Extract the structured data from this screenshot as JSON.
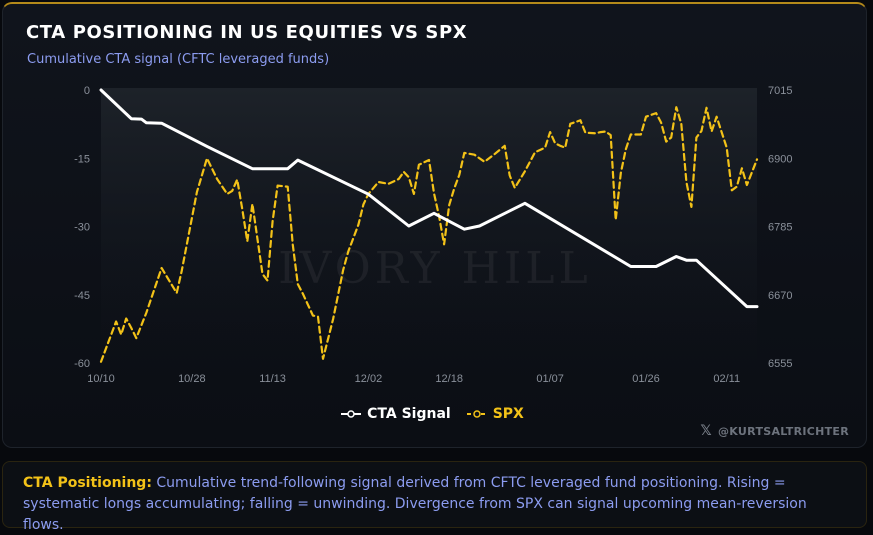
{
  "title": "CTA POSITIONING IN US EQUITIES VS SPX",
  "subtitle": "Cumulative CTA signal (CFTC leveraged funds)",
  "watermark": "IVORY HILL",
  "credit": "@KURTSALTRICHTER",
  "note": {
    "label": "CTA Positioning:",
    "text": " Cumulative trend-following signal derived from CFTC leveraged fund positioning. Rising = systematic longs accumulating; falling = unwinding. Divergence from SPX can signal upcoming mean-reversion flows."
  },
  "colors": {
    "cta": "#ffffff",
    "spx": "#f3c218",
    "accent": "#b48a1a",
    "subtitle": "#8c9cf0"
  },
  "chart_data": {
    "type": "line",
    "x_start": "10/10",
    "x_end": "02/17",
    "x_ticks": [
      {
        "label": "10/10",
        "x": "10/10"
      },
      {
        "label": "10/28",
        "x": "10/28"
      },
      {
        "label": "11/13",
        "x": "11/13"
      },
      {
        "label": "12/02",
        "x": "12/02"
      },
      {
        "label": "12/18",
        "x": "12/18"
      },
      {
        "label": "01/07",
        "x": "01/07"
      },
      {
        "label": "01/26",
        "x": "01/26"
      },
      {
        "label": "02/11",
        "x": "02/11"
      }
    ],
    "y_left": {
      "ticks": [
        "0",
        "-15",
        "-30",
        "-45",
        "-60"
      ],
      "ylim": [
        -60,
        0
      ]
    },
    "y_right": {
      "ticks": [
        "7015",
        "6900",
        "6785",
        "6670",
        "6555"
      ],
      "ylim": [
        6555,
        7015
      ]
    },
    "series": [
      {
        "name": "CTA Signal",
        "axis": "left",
        "style": "solid",
        "points": [
          [
            "10/10",
            0
          ],
          [
            "10/16",
            -6.3
          ],
          [
            "10/18",
            -6.4
          ],
          [
            "10/19",
            -7.2
          ],
          [
            "10/22",
            -7.3
          ],
          [
            "10/31",
            -12.4
          ],
          [
            "11/09",
            -17.3
          ],
          [
            "11/16",
            -17.3
          ],
          [
            "11/18",
            -15.4
          ],
          [
            "12/02",
            -22.9
          ],
          [
            "12/10",
            -29.9
          ],
          [
            "12/15",
            -27.1
          ],
          [
            "12/21",
            -30.6
          ],
          [
            "12/24",
            -29.9
          ],
          [
            "01/02",
            -24.9
          ],
          [
            "01/23",
            -38.8
          ],
          [
            "01/28",
            -38.8
          ],
          [
            "02/01",
            -36.6
          ],
          [
            "02/03",
            -37.4
          ],
          [
            "02/05",
            -37.4
          ],
          [
            "02/15",
            -47.6
          ],
          [
            "02/17",
            -47.6
          ]
        ]
      },
      {
        "name": "SPX",
        "axis": "right",
        "style": "dashed",
        "points": [
          [
            "10/10",
            6557
          ],
          [
            "10/13",
            6625
          ],
          [
            "10/14",
            6603
          ],
          [
            "10/15",
            6630
          ],
          [
            "10/16",
            6614
          ],
          [
            "10/17",
            6597
          ],
          [
            "10/19",
            6640
          ],
          [
            "10/22",
            6715
          ],
          [
            "10/25",
            6673
          ],
          [
            "10/26",
            6710
          ],
          [
            "10/29",
            6843
          ],
          [
            "10/31",
            6900
          ],
          [
            "11/02",
            6865
          ],
          [
            "11/04",
            6840
          ],
          [
            "11/05",
            6845
          ],
          [
            "11/06",
            6864
          ],
          [
            "11/07",
            6814
          ],
          [
            "11/08",
            6760
          ],
          [
            "11/09",
            6823
          ],
          [
            "11/11",
            6705
          ],
          [
            "11/12",
            6694
          ],
          [
            "11/13",
            6794
          ],
          [
            "11/14",
            6854
          ],
          [
            "11/16",
            6852
          ],
          [
            "11/17",
            6754
          ],
          [
            "11/18",
            6688
          ],
          [
            "11/19",
            6672
          ],
          [
            "11/21",
            6635
          ],
          [
            "11/22",
            6633
          ],
          [
            "11/23",
            6562
          ],
          [
            "11/25",
            6629
          ],
          [
            "11/27",
            6712
          ],
          [
            "11/28",
            6743
          ],
          [
            "11/30",
            6788
          ],
          [
            "12/01",
            6822
          ],
          [
            "12/02",
            6840
          ],
          [
            "12/04",
            6860
          ],
          [
            "12/06",
            6857
          ],
          [
            "12/08",
            6865
          ],
          [
            "12/09",
            6877
          ],
          [
            "12/10",
            6868
          ],
          [
            "12/11",
            6840
          ],
          [
            "12/12",
            6889
          ],
          [
            "12/14",
            6897
          ],
          [
            "12/15",
            6841
          ],
          [
            "12/16",
            6802
          ],
          [
            "12/17",
            6755
          ],
          [
            "12/18",
            6821
          ],
          [
            "12/19",
            6849
          ],
          [
            "12/20",
            6872
          ],
          [
            "12/21",
            6909
          ],
          [
            "12/23",
            6906
          ],
          [
            "12/25",
            6894
          ],
          [
            "12/27",
            6907
          ],
          [
            "12/29",
            6921
          ],
          [
            "12/30",
            6871
          ],
          [
            "12/31",
            6850
          ],
          [
            "01/02",
            6878
          ],
          [
            "01/04",
            6910
          ],
          [
            "01/06",
            6918
          ],
          [
            "01/07",
            6944
          ],
          [
            "01/08",
            6925
          ],
          [
            "01/09",
            6921
          ],
          [
            "01/10",
            6918
          ],
          [
            "01/11",
            6958
          ],
          [
            "01/13",
            6964
          ],
          [
            "01/14",
            6943
          ],
          [
            "01/16",
            6942
          ],
          [
            "01/17",
            6944
          ],
          [
            "01/18",
            6945
          ],
          [
            "01/19",
            6939
          ],
          [
            "01/20",
            6796
          ],
          [
            "01/21",
            6875
          ],
          [
            "01/22",
            6915
          ],
          [
            "01/23",
            6940
          ],
          [
            "01/25",
            6940
          ],
          [
            "01/26",
            6970
          ],
          [
            "01/28",
            6976
          ],
          [
            "01/29",
            6960
          ],
          [
            "01/30",
            6928
          ],
          [
            "01/31",
            6935
          ],
          [
            "02/01",
            6986
          ],
          [
            "02/02",
            6958
          ],
          [
            "02/03",
            6860
          ],
          [
            "02/04",
            6818
          ],
          [
            "02/05",
            6935
          ],
          [
            "02/06",
            6946
          ],
          [
            "02/07",
            6985
          ],
          [
            "02/08",
            6945
          ],
          [
            "02/09",
            6970
          ],
          [
            "02/11",
            6918
          ],
          [
            "02/12",
            6846
          ],
          [
            "02/13",
            6852
          ],
          [
            "02/14",
            6883
          ],
          [
            "02/15",
            6855
          ],
          [
            "02/17",
            6898
          ]
        ]
      }
    ],
    "legend_position": "bottom-center",
    "grid": false
  }
}
